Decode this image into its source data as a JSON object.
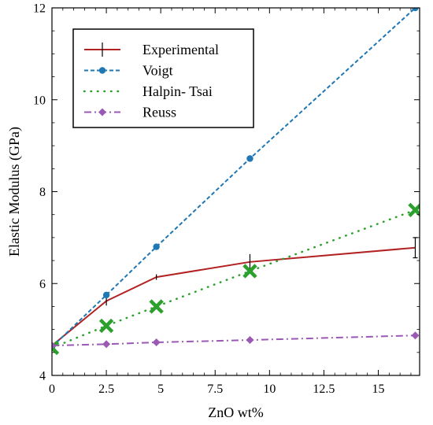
{
  "chart_data": {
    "type": "line",
    "xlabel": "ZnO wt%",
    "ylabel": "Elastic Modulus (GPa)",
    "xlim": [
      0,
      16.9
    ],
    "ylim": [
      4,
      12
    ],
    "xticks": [
      0,
      2.5,
      5,
      7.5,
      10,
      12.5,
      15
    ],
    "xtick_labels": [
      "0",
      "2.5",
      "5",
      "7.5",
      "10",
      "12.5",
      "15"
    ],
    "yticks": [
      4,
      6,
      8,
      10,
      12
    ],
    "ytick_labels": [
      "4",
      "6",
      "8",
      "10",
      "12"
    ],
    "legend_position": "top-left",
    "series": [
      {
        "name": "Experimental",
        "style": "solid-errorbar",
        "color": "#b22222",
        "x": [
          0,
          2.5,
          4.8,
          9.1,
          16.7
        ],
        "y": [
          4.65,
          5.62,
          6.14,
          6.47,
          6.78
        ],
        "yerr": [
          0.05,
          0.1,
          0.06,
          0.17,
          0.22
        ]
      },
      {
        "name": "Voigt",
        "style": "dashed-circle",
        "color": "#1f77b4",
        "x": [
          0,
          2.5,
          4.8,
          9.1,
          16.7
        ],
        "y": [
          4.62,
          5.75,
          6.8,
          8.72,
          12.0
        ]
      },
      {
        "name": "Halpin- Tsai",
        "style": "dotted-x",
        "color": "#2ca02c",
        "x": [
          0,
          2.5,
          4.8,
          9.1,
          16.7
        ],
        "y": [
          4.6,
          5.08,
          5.5,
          6.27,
          7.6
        ]
      },
      {
        "name": "Reuss",
        "style": "dashdot-diamond",
        "color": "#9b59b6",
        "x": [
          0,
          2.5,
          4.8,
          9.1,
          16.7
        ],
        "y": [
          4.65,
          4.68,
          4.72,
          4.77,
          4.87
        ]
      }
    ]
  }
}
